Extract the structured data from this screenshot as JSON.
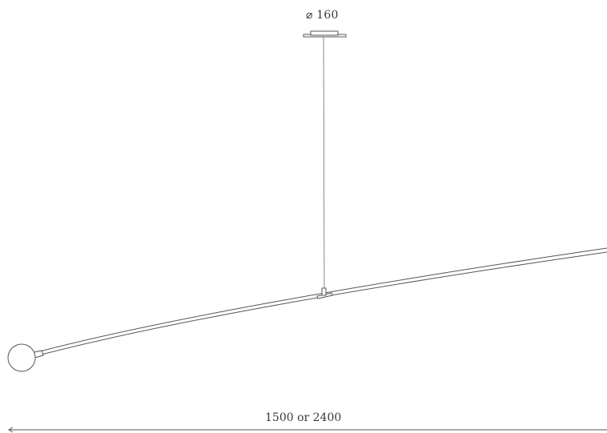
{
  "labels": {
    "diameter": "⌀ 160",
    "width": "1500 or 2400"
  },
  "colors": {
    "line": "#555555",
    "text": "#3a3a3a",
    "background": "#ffffff"
  }
}
